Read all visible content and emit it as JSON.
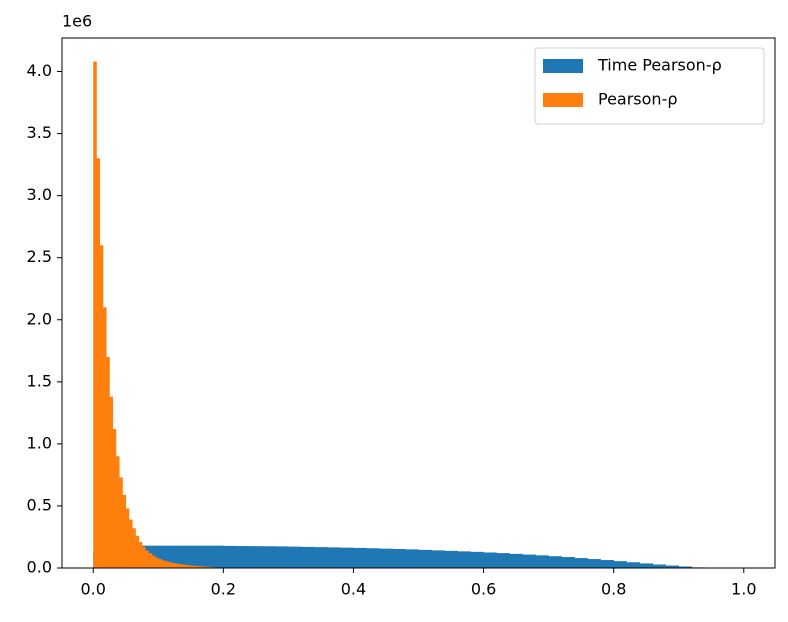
{
  "chart_data": {
    "type": "histogram",
    "y_offset_label": "1e6",
    "xlim": [
      -0.048,
      1.048
    ],
    "ylim": [
      0,
      4.27
    ],
    "xticks": [
      {
        "value": 0,
        "label": "0.0"
      },
      0.2,
      0.4,
      0.6,
      0.8,
      {
        "value": 1,
        "label": "1.0"
      }
    ],
    "yticks": [
      {
        "value": 0,
        "label": "0.0"
      },
      0.5,
      {
        "value": 1,
        "label": "1.0"
      },
      1.5,
      {
        "value": 2,
        "label": "2.0"
      },
      2.5,
      {
        "value": 3,
        "label": "3.0"
      },
      3.5,
      {
        "value": 4,
        "label": "4.0"
      }
    ],
    "legend": "upper right",
    "series": [
      {
        "name": "Time Pearson-ρ",
        "color": "#1f77b4",
        "bins": [
          0,
          0.02,
          0.04,
          0.06,
          0.08,
          0.1,
          0.12,
          0.14,
          0.16,
          0.18,
          0.2,
          0.22,
          0.24,
          0.26,
          0.28,
          0.3,
          0.32,
          0.34,
          0.36,
          0.38,
          0.4,
          0.42,
          0.44,
          0.46,
          0.48,
          0.5,
          0.52,
          0.54,
          0.56,
          0.58,
          0.6,
          0.62,
          0.64,
          0.66,
          0.68,
          0.7,
          0.72,
          0.74,
          0.76,
          0.78,
          0.8,
          0.82,
          0.84,
          0.86,
          0.88,
          0.9,
          0.92,
          0.94,
          0.96,
          0.98,
          1
        ],
        "values": [
          0.14,
          0.16,
          0.17,
          0.18,
          0.18,
          0.18,
          0.18,
          0.18,
          0.18,
          0.18,
          0.178,
          0.177,
          0.176,
          0.175,
          0.174,
          0.172,
          0.17,
          0.168,
          0.166,
          0.164,
          0.162,
          0.159,
          0.156,
          0.153,
          0.15,
          0.146,
          0.142,
          0.138,
          0.134,
          0.13,
          0.125,
          0.12,
          0.114,
          0.108,
          0.102,
          0.095,
          0.088,
          0.08,
          0.072,
          0.064,
          0.055,
          0.046,
          0.037,
          0.028,
          0.02,
          0.012,
          0.005,
          0,
          0,
          0
        ]
      },
      {
        "name": "Pearson-ρ",
        "color": "#ff7f0e",
        "bins": [
          0,
          0.005,
          0.01,
          0.015,
          0.02,
          0.025,
          0.03,
          0.035,
          0.04,
          0.045,
          0.05,
          0.055,
          0.06,
          0.065,
          0.07,
          0.075,
          0.08,
          0.085,
          0.09,
          0.095,
          0.1,
          0.105,
          0.11,
          0.115,
          0.12,
          0.125,
          0.13,
          0.135,
          0.14,
          0.145,
          0.15,
          0.155,
          0.16,
          0.165,
          0.17,
          0.175,
          0.18,
          0.185,
          0.19,
          0.195,
          0.2
        ],
        "values": [
          4.08,
          3.3,
          2.6,
          2.1,
          1.7,
          1.38,
          1.12,
          0.9,
          0.73,
          0.59,
          0.48,
          0.39,
          0.32,
          0.26,
          0.21,
          0.17,
          0.14,
          0.12,
          0.1,
          0.085,
          0.072,
          0.062,
          0.054,
          0.047,
          0.041,
          0.036,
          0.032,
          0.028,
          0.025,
          0.022,
          0.019,
          0.017,
          0.015,
          0.013,
          0.011,
          0.009,
          0.007,
          0.005,
          0.003,
          0.002
        ]
      }
    ]
  }
}
